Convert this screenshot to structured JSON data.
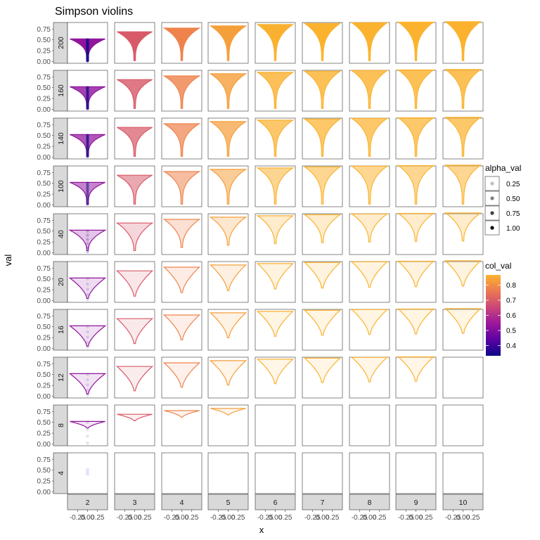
{
  "chart_data": {
    "type": "violin",
    "title": "Simpson violins",
    "xlabel": "x",
    "ylabel": "val",
    "facet_columns": [
      "2",
      "3",
      "4",
      "5",
      "6",
      "7",
      "8",
      "9",
      "10"
    ],
    "facet_rows": [
      "200",
      "160",
      "140",
      "100",
      "40",
      "20",
      "16",
      "12",
      "8",
      "4"
    ],
    "x_ticks": [
      "-0.25",
      "0.00",
      "0.25"
    ],
    "xlim": [
      -0.5,
      0.5
    ],
    "y_ticks": [
      "0.00",
      "0.25",
      "0.50",
      "0.75"
    ],
    "ylim": [
      -0.04,
      0.9
    ],
    "legend_alpha": {
      "title": "alpha_val",
      "labels": [
        "0.25",
        "0.50",
        "0.75",
        "1.00"
      ],
      "values": [
        0.25,
        0.5,
        0.75,
        1.0
      ]
    },
    "legend_color": {
      "title": "col_val",
      "labels": [
        "0.4",
        "0.5",
        "0.6",
        "0.7",
        "0.8"
      ],
      "breaks": [
        0.4,
        0.5,
        0.6,
        0.7,
        0.8
      ],
      "range": [
        0.333,
        0.867
      ],
      "colors": [
        "#0d0887",
        "#5b02a3",
        "#9a179b",
        "#cb4678",
        "#eb7852",
        "#fbb32f"
      ]
    }
  }
}
